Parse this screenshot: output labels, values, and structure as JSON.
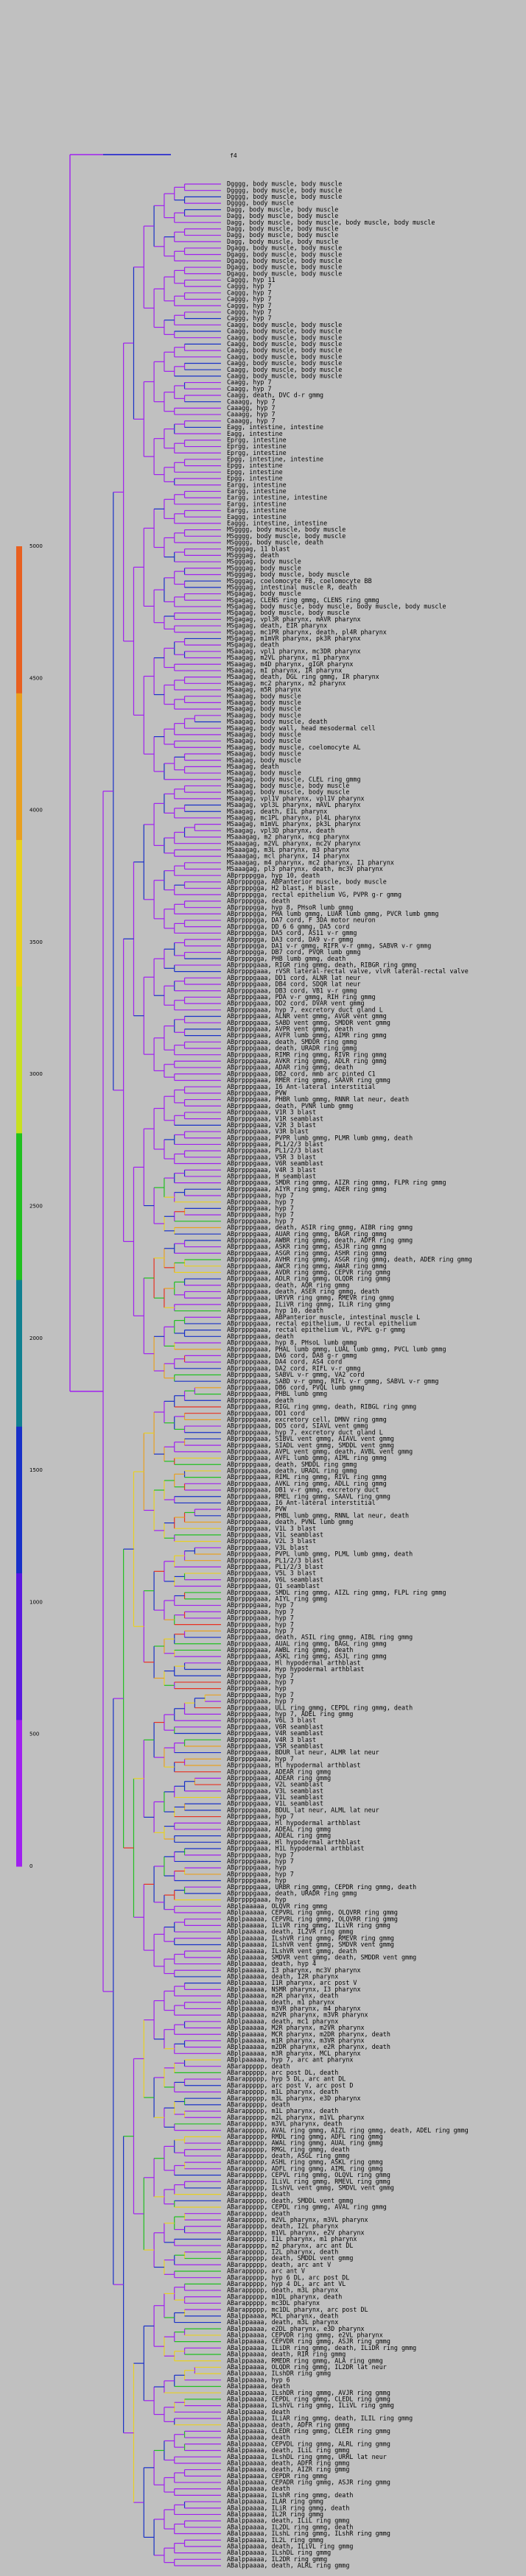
{
  "colors": {
    "background": "#c0c0c0",
    "branch": "#a020f0",
    "scale": [
      "#a020f0",
      "#5a18e0",
      "#1830c8",
      "#108090",
      "#20c020",
      "#c8e020",
      "#e8d020",
      "#e8a020",
      "#e86020"
    ]
  },
  "legend": {
    "ticks": [
      "0",
      "500",
      "1000",
      "1500",
      "2000",
      "2500",
      "3000",
      "3500",
      "4000",
      "4500",
      "5000"
    ]
  },
  "root_label": "f4",
  "leaves": [
    "Dgggg, body muscle, body muscle",
    "Dgggg, body muscle, body muscle",
    "Dgggg, body muscle, body muscle",
    "Dgggg, body muscle",
    "Dagg, body muscle, body muscle",
    "Dagg, body muscle, body muscle",
    "Dagg, body muscle, body muscle, body muscle, body muscle",
    "Dagg, body muscle, body muscle",
    "Dagg, body muscle, body muscle",
    "Dagg, body muscle, body muscle",
    "Dgagg, body muscle, body muscle",
    "Dgagg, body muscle, body muscle",
    "Dgagg, body muscle, body muscle",
    "Dgagg, body muscle, body muscle",
    "Dgagg, body muscle, body muscle",
    "Caggg, hyp 11",
    "Caggg, hyp 7",
    "Caggg, hyp 7",
    "Caggg, hyp 7",
    "Caggg, hyp 7",
    "Caggg, hyp 7",
    "Caggg, hyp 7",
    "Caagg, body muscle, body muscle",
    "Caagg, body muscle, body muscle",
    "Caagg, body muscle, body muscle",
    "Caagg, body muscle, body muscle",
    "Caagg, body muscle, body muscle",
    "Caagg, body muscle, body muscle",
    "Caagg, body muscle, body muscle",
    "Caagg, body muscle, body muscle",
    "Caagg, body muscle, body muscle",
    "Caagg, hyp 7",
    "Caagg, hyp 7",
    "Caagg, death, DVC d-r gmmg",
    "Caaagg, hyp 7",
    "Caaagg, hyp 7",
    "Caaagg, hyp 7",
    "Caaagg, hyp 7",
    "Eagg, intestine, intestine",
    "Eagg, intestine",
    "Eprgg, intestine",
    "Eprgg, intestine",
    "Eprgg, intestine",
    "Epgg, intestine, intestine",
    "Epgg, intestine",
    "Epgg, intestine",
    "Epgg, intestine",
    "Eargg, intestine",
    "Eargg, intestine",
    "Eargg, intestine, intestine",
    "Eargg, intestine",
    "Eargg, intestine",
    "Eaggg, intestine",
    "Eaggg, intestine, intestine",
    "MSgggg, body muscle, body muscle",
    "MSgggg, body muscle, body muscle",
    "MSgggg, body muscle, death",
    "MSgggag, 11 blast",
    "MSgggag, death",
    "MSgggag, body muscle",
    "MSgggag, body muscle",
    "MSgggag, body muscle, body muscle",
    "MSgggag, coelomocyte FB, coelomocyte BB",
    "MSgggag, intestinal muscle R, death",
    "MSgagag, body muscle",
    "MSgagag, CLENS ring gmmg, CLENS ring gmmg",
    "MSgagag, body muscle, body muscle, body muscle, body muscle",
    "MSgagag, body muscle, body muscle",
    "MSgagag, vpl3R pharynx, mAVR pharynx",
    "MSgagag, death, EIR pharynx",
    "MSgagag, mc1PR pharynx, death, pl4R pharynx",
    "MSgagag, m1mVR pharynx, pk3R pharynx",
    "MSgagag, death",
    "MSaagag, vpl1 pharynx, mc3DR pharynx",
    "MSaagag, m2VL pharynx, m1 pharynx",
    "MSaagag, m4D pharynx, gIGR pharynx",
    "MSaagag, mI pharynx, IR pharynx",
    "MSaagag, death, DGL ring gmmg, IR pharynx",
    "MSaagag, mc2 pharynx, m2 pharynx",
    "MSaagag, m5R pharynx",
    "MSaagag, body muscle",
    "MSaagag, body muscle",
    "MSaagag, body muscle",
    "MSaagag, body muscle",
    "MSaagag, body muscle, death",
    "MSaagag, body wall, head mesodermal cell",
    "MSaagag, body muscle",
    "MSaagag, body muscle",
    "MSaagag, body muscle, coelomocyte AL",
    "MSaagag, body muscle",
    "MSaagag, body muscle",
    "MSaagag, death",
    "MSaagag, body muscle",
    "MSaagag, body muscle, CLEL ring gmmg",
    "MSaagag, body muscle, body muscle",
    "MSaagag, body muscle, body muscle",
    "MSaagag, vpl1V pharynx, vpl1V pharynx",
    "MSaagag, vpl3L pharynx, mAVL pharynx",
    "MSaagag, death, EIL pharynx",
    "MSaagag, mc1PL pharynx, pl4L pharynx",
    "MSaagag, m1mVL pharynx, pk3L pharynx",
    "MSaagag, vpl3D pharynx, death",
    "MSaaagag, m2 pharynx, mcg pharynx",
    "MSaaagag, m2VL pharynx, mc2V pharynx",
    "MSaaagag, m3L pharynx, m3 pharynx",
    "MSaaagag, mcl pharynx, I4 pharynx",
    "MSaaagag, m4 pharynx, mc2 pharynx, I1 pharynx",
    "MSaaagag, pl3 pharynx, death, mc3V pharynx",
    "ABprpppgga, hyp 10, death",
    "ABprpppgga, ABPanterior muscle, body muscle",
    "ABprpppgga, H2 blast, H blast",
    "ABprpppgga, rectal epithelium VG, PVPR g-r gmmg",
    "ABprpppgga, death",
    "ABprpppgga, hyp 8, PHsoR lumb gmmg",
    "ABprpppgga, PHA lumb gmmg, LUAR lumb gmmg, PVCR lumb gmmg",
    "ABprpppgga, DA7 cord, F 3DA motor neuron",
    "ABprpppgga, DD 6 6 gmmg, DA5 cord",
    "ABprpppgga, DA5 cord, AS11 v-r gmmg",
    "ABprpppgga, DA3 cord, DA9 v-r gmmg",
    "ABprpppgga, DA1 v-r gmmg, RIFR v-r gmmg, SABVR v-r gmmg",
    "ABprpppgga, DB7 cord, PVQR lumb gmmg",
    "ABprpppgga, PHB lumb gmmg, death",
    "ABprpppgaaa, RIGR ring gmmg, death, RIBGR ring gmmg",
    "ABprpppgaaa, rVSR lateral-rectal valve, vlvR lateral-rectal valve",
    "ABprpppgaaa, DD1 cord, ALNR lat neur",
    "ABprpppgaaa, DB4 cord, SDQR lat neur",
    "ABprpppgaaa, DB3 cord, VB1 v-r gmmg",
    "ABprpppgaaa, PDA v-r gmmg, RIH ring gmmg",
    "ABprpppgaaa, DD2 cord, DVAR vent gmmg",
    "ABprpppgaaa, hyp 7, excretory duct gland L",
    "ABprpppgaaa, ALNR vent gmmg, AVGR vent gmmg",
    "ABprpppgaaa, SABD vent gmmg, SMDDR vent gmmg",
    "ABprpppgaaa, AVPR vent gmmg, death",
    "ABprpppgaaa, AVFR lumb gmmg, AIMR ring gmmg",
    "ABprpppgaaa, death, SMDDR ring gmmg",
    "ABprpppgaaa, death, URADR ring gmmg",
    "ABprpppgaaa, RIMR ring gmmg, RIVR ring gmmg",
    "ABprpppgaaa, AVKR ring gmmg, ADLR ring gmmg",
    "ABprpppgaaa, ADAR ring gmmg, death",
    "ABprpppgaaa, DB2 cord, mmb arc pinted C1",
    "ABprpppgaaa, RMER ring gmmg, SAAVR ring gmmg",
    "ABprpppgaaa, I6 Ant-lateral interstitial",
    "ABprpppgaaa, PVW",
    "ABprpppgaaa, PHBR lumb gmmg, RNNR lat neur, death",
    "ABprpppgaaa, death, PVNR lumb gmmg",
    "ABprpppgaaa, V1R 3 blast",
    "ABprpppgaaa, V1R seamblast",
    "ABprpppgaaa, V2R 3 blast",
    "ABprpppgaaa, V3R blast",
    "ABprpppgaaa, PVPR lumb gmmg, PLMR lumb gmmg, death",
    "ABprpppgaaa, PL1/2/3 blast",
    "ABprpppgaaa, PL1/2/3 blast",
    "ABprpppgaaa, V5R 3 blast",
    "ABprpppgaaa, V6R seamblast",
    "ABprpppgaaa, V4R 3 blast",
    "ABprpppgaaa, H seamblast",
    "ABprpppgaaa, SMDR ring gmmg, AIZR ring gmmg, FLPR ring gmmg",
    "ABprpppgaaa, AIYR ring gmmg, ADER ring gmmg",
    "ABprpppgaaa, hyp 7",
    "ABprpppgaaa, hyp 7",
    "ABprpppgaaa, hyp 7",
    "ABprpppgaaa, hyp 7",
    "ABprpppgaaa, hyp 7",
    "ABprpppgaaa, death, ASIR ring gmmg, AIBR ring gmmg",
    "ABprpppgaaa, AUAR ring gmmg, BAGR ring gmmg",
    "ABprpppgaaa, AWBR ring gmmg, death, ADFR ring gmmg",
    "ABprpppgaaa, ASKR ring gmmg, ASJR ring gmmg",
    "ABprpppgaaa, ASGR ring gmmg, ASHR ring gmmg",
    "ABprpppgaaa, AVHR ring gmmg, ASGR ring gmmg, death, ADER ring gmmg",
    "ABprpppgaaa, AWCR ring gmmg, AWAR ring gmmg",
    "ABprpppgaaa, AVDR ring gmmg, CEPVR ring gmmg",
    "ABprpppgaaa, ADLR ring gmmg, OLQDR ring gmmg",
    "ABprpppgaaa, death, AQR ring gmmg",
    "ABprpppgaaa, death, ASER ring gmmg, death",
    "ABprpppgaaa, URYVR ring gmmg, RMEVR ring gmmg",
    "ABprpppgaaa, ILiVR ring gmmg, ILiR ring gmmg",
    "ABprpppgaaa, hyp 10, death",
    "ABprpppgaaa, ABPanterior muscle, intestinal muscle L",
    "ABprpppgaaa, rectal epithelium, U rectal epithelium",
    "ABprpppgaaa, rectal epithelium VL, PVPL g-r gmmg",
    "ABprpppgaaa, death",
    "ABprpppgaaa, hyp 8, PHsoL lumb gmmg",
    "ABprpppgaaa, PHAL lumb gmmg, LUAL lumb gmmg, PVCL lumb gmmg",
    "ABprpppgaaa, DA6 cord, DA8 g-r gmmg",
    "ABprpppgaaa, DA4 cord, AS4 cord",
    "ABprpppgaaa, DA2 cord, RIFL v-r gmmg",
    "ABprpppgaaa, SABVL v-r gmmg, VA2 cord",
    "ABprpppgaaa, SABD v-r gmmg, RIFL v-r gmmg, SABVL v-r gmmg",
    "ABprpppgaaa, DB6 cord, PVQL lumb gmmg",
    "ABprpppgaaa, PHBL lumb gmmg",
    "ABprpppgaaa, death",
    "ABprpppgaaa, RIGL ring gmmg, death, RIBGL ring gmmg",
    "ABprpppgaaa, DD1 cord",
    "ABprpppgaaa, excretory cell, DMNV ring gmmg",
    "ABprpppgaaa, DD5 cord, SIAVL vent gmmg",
    "ABprpppgaaa, hyp 7, excretory duct gland L",
    "ABprpppgaaa, SIBVL vent gmmg, AIAVL vent gmmg",
    "ABprpppgaaa, SIADL vent gmmg, SMDDL vent gmmg",
    "ABprpppgaaa, AVPL vent gmmg, death, AVBL vent gmmg",
    "ABprpppgaaa, AVFL lumb gmmg, AIML ring gmmg",
    "ABprpppgaaa, death, SMDDL ring gmmg",
    "ABprpppgaaa, death, URADL ring gmmg",
    "ABprpppgaaa, RIML ring gmmg, RIVL ring gmmg",
    "ABprpppgaaa, AVKL ring gmmg, ADLL ring gmmg",
    "ABprpppgaaa, DB1 v-r gmmg, excretory duct",
    "ABprpppgaaa, RMEL ring gmmg, SAAVL ring gmmg",
    "ABprpppgaaa, I6 Ant-lateral interstitial",
    "ABprpppgaaa, PVW",
    "ABprpppgaaa, PHBL lumb gmmg, RNNL lat neur, death",
    "ABprpppgaaa, death, PVNL lumb gmmg",
    "ABprpppgaaa, V1L 3 blast",
    "ABprpppgaaa, V1L seamblast",
    "ABprpppgaaa, V2L 3 blast",
    "ABprpppgaaa, V3L blast",
    "ABprpppgaaa, PVPL lumb gmmg, PLML lumb gmmg, death",
    "ABprpppgaaa, PL1/2/3 blast",
    "ABprpppgaaa, PL1/2/3 blast",
    "ABprpppgaaa, V5L 3 blast",
    "ABprpppgaaa, V6L seamblast",
    "ABprpppgaaa, Q1 seamblast",
    "ABprpppgaaa, SMDL ring gmmg, AIZL ring gmmg, FLPL ring gmmg",
    "ABprpppgaaa, AIYL ring gmmg",
    "ABprpppgaaa, hyp 7",
    "ABprpppgaaa, hyp 7",
    "ABprpppgaaa, hyp 7",
    "ABprpppgaaa, hyp 7",
    "ABprpppgaaa, hyp 7",
    "ABprpppgaaa, death, ASIL ring gmmg, AIBL ring gmmg",
    "ABprpppgaaa, AUAL ring gmmg, BAGL ring gmmg",
    "ABprpppgaaa, AWBL ring gmmg, death",
    "ABprpppgaaa, ASKL ring gmmg, ASJL ring gmmg",
    "ABprpppgaaa, Hl hypodermal arthblast",
    "ABprpppgaaa, Hyp hypodermal arthblast",
    "ABprpppgaaa, hyp 7",
    "ABprpppgaaa, hyp 7",
    "ABprpppgaaa, hyp",
    "ABprpppgaaa, hyp 7",
    "ABprpppgaaa, hyp 7",
    "ABprpppgaaa, ULL ring gmmg, CEPDL ring gmmg, death",
    "ABprpppgaaa, hyp 7, ADEL ring gmmg",
    "ABprpppgaaa, V6L 3 blast",
    "ABprpppgaaa, V6R seamblast",
    "ABprpppgaaa, V4R seamblast",
    "ABprpppgaaa, V4R 3 blast",
    "ABprpppgaaa, V5R seamblast",
    "ABprpppgaaa, BDUR lat neur, ALMR lat neur",
    "ABprpppgaaa, hyp 7",
    "ABprpppgaaa, Hl hypodermal arthblast",
    "ABprpppgaaa, ADEAR ring gmmg",
    "ABprpppgaaa, ADEAR ring gmmg",
    "ABprpppgaaa, V2L seamblast",
    "ABprpppgaaa, V3L seamblast",
    "ABprpppgaaa, V1L seamblast",
    "ABprpppgaaa, V1L seamblast",
    "ABprpppgaaa, BDUL lat neur, ALML lat neur",
    "ABprpppgaaa, hyp 7",
    "ABprpppgaaa, Hl hypodermal arthblast",
    "ABprpppgaaa, ADEAL ring gmmg",
    "ABprpppgaaa, ADEAL ring gmmg",
    "ABprpppgaaa, Hl hypodermal arthblast",
    "ABprpppgaaa, H1L hypodermal arthblast",
    "ABprpppgaaa, hyp 7",
    "ABprpppgaaa, hyp 7",
    "ABprpppgaaa, hyp",
    "ABprpppgaaa, hyp 7",
    "ABprpppgaaa, hyp",
    "ABprpppgaaa, URBR ring gmmg, CEPDR ring gmmg, death",
    "ABprpppgaaa, death, URADR ring gmmg",
    "ABprpppgaaa, hyp",
    "ABplpaaaaa, OLQVR ring gmmg",
    "ABplpaaaaa, CEPVRL ring gmmg, OLQVRR ring gmmg",
    "ABplpaaaaa, CEPVRL ring gmmg, OLQVRR ring gmmg",
    "ABplpaaaaa, ILiVR ring gmmg, ILiVR ring gmmg",
    "ABplpaaaaa, death, IL2VR ring gmmg",
    "ABplpaaaaa, ILshVR ring gmmg, RMEVR ring gmmg",
    "ABplpaaaaa, ILshVR vent gmmg, SMDVR vent gmmg",
    "ABplpaaaaa, ILshVR vent gmmg, death",
    "ABplpaaaaa, SMDVR vent gmmg, death, SMDDR vent gmmg",
    "ABplpaaaaa, death, hyp 4",
    "ABplpaaaaa, I3 pharynx, mc3V pharynx",
    "ABplpaaaaa, death, I2R pharynx",
    "ABplpaaaaa, I1R pharynx, arc post V",
    "ABplpaaaaa, NSMR pharynx, I3 pharynx",
    "ABplpaaaaa, m2R pharynx, death",
    "ABplpaaaaa, death, m1 pharynx",
    "ABplpaaaaa, m3VR pharynx, m4 pharynx",
    "ABplpaaaaa, m2VR pharynx, m3VR pharynx",
    "ABplpaaaaa, death, mc1 pharynx",
    "ABplpaaaaa, M2R pharynx, m2VR pharynx",
    "ABplpaaaaa, MCR pharynx, m2DR pharynx, death",
    "ABplpaaaaa, m1R pharynx, m3VR pharynx",
    "ABplpaaaaa, m2DR pharynx, e2R pharynx, death",
    "ABplpaaaaa, m3R pharynx, MCL pharynx",
    "ABplpaaaaa, hyp 7, arc ant pharynx",
    "ABarappppp, death",
    "ABarappppp, arc post DL, death",
    "ABarappppp, hyp 5 DL, arc ant DL",
    "ABarappppp, arc post V, arc post D",
    "ABarappppp, m1L pharynx, death",
    "ABarappppp, m3L pharynx, e3D pharynx",
    "ABarappppp, death",
    "ABarappppp, m1L pharynx, death",
    "ABarappppp, m2L pharynx, m1VL pharynx",
    "ABarappppp, m3VL pharynx, death",
    "ABarappppp, AVAL ring gmmg, AIZL ring gmmg, death, ADEL ring gmmg",
    "ABarappppp, RMDL ring gmmg, ADFL ring gmmg",
    "ABarappppp, AWAL ring gmmg, AUAL ring gmmg",
    "ABarappppp, RMGL ring gmmg, death",
    "ABarappppp, death, ASGL ring gmmg",
    "ABarappppp, ASHL ring gmmg, ASKL ring gmmg",
    "ABarappppp, ADFL ring gmmg, AIML ring gmmg",
    "ABarappppp, CEPVL ring gmmg, OLQVL ring gmmg",
    "ABarappppp, ILiVL ring gmmg, RMEVL ring gmmg",
    "ABarappppp, ILshVL vent gmmg, SMDVL vent gmmg",
    "ABarappppp, death",
    "ABarappppp, death, SMDDL vent gmmg",
    "ABarappppp, CEPDL ring gmmg, AVAL ring gmmg",
    "ABarappppp, death",
    "ABarappppp, m2VL pharynx, m3VL pharynx",
    "ABarappppp, death, I2L pharynx",
    "ABarappppp, m1VL pharynx, e2V pharynx",
    "ABarappppp, I1L pharynx, m1 pharynx",
    "ABarappppp, m2 pharynx, arc ant DL",
    "ABarappppp, I2L pharynx, death",
    "ABarappppp, death, SMDDL vent gmmg",
    "ABarappppp, death, arc ant V",
    "ABarappppp, arc ant V",
    "ABarappppp, hyp 6 DL, arc post DL",
    "ABarappppp, hyp 4 DL, arc ant VL",
    "ABarappppp, death, m3L pharynx",
    "ABarappppp, m1DL pharynx, death",
    "ABarappppp, mc3DL pharynx",
    "ABarappppp, mc1DL pharynx, arc post DL",
    "ABalppaaaa, MCL pharynx, death",
    "ABalppaaaa, death, m3L pharynx",
    "ABalppaaaa, e2DL pharynx, e3D pharynx",
    "ABalppaaaa, CEPVDR ring gmmg, e2VL pharynx",
    "ABalppaaaa, CEPVDR ring gmmg, ASJR ring gmmg",
    "ABalppaaaa, ILiDR ring gmmg, death, ILiDR ring gmmg",
    "ABalppaaaa, death, RIR ring gmmg",
    "ABalppaaaa, RMEDR ring gmmg, ALA ring gmmg",
    "ABalppaaaa, OLQDR ring gmmg, IL2DR lat neur",
    "ABalppaaaa, ILshDR ring gmmg",
    "ABalppaaaa, hyp 6",
    "ABalppaaaa, death",
    "ABalppaaaa, ILshDR ring gmmg, AVJR ring gmmg",
    "ABalppaaaa, CEPDL ring gmmg, CLEDL ring gmmg",
    "ABalppaaaa, ILshVL ring gmmg, ILiVL ring gmmg",
    "ABalppaaaa, death",
    "ABalppaaaa, ILiAR ring gmmg, death, ILIL ring gmmg",
    "ABalppaaaa, death, ADFR ring gmmg",
    "ABalppaaaa, CLEDR ring gmmg, CLEIR ring gmmg",
    "ABalppaaaa, death",
    "ABalppaaaa, CEPVDL ring gmmg, ALRL ring gmmg",
    "ABalppaaaa, death, ILiL ring gmmg",
    "ABalppaaaa, ILshDL ring gmmg, URRL lat neur",
    "ABalppaaaa, death, ADFR ring gmmg",
    "ABalppaaaa, death, AIZR ring gmmg",
    "ABalppaaaa, CEPDR ring gmmg",
    "ABalppaaaa, CEPADR ring gmmg, ASJR ring gmmg",
    "ABalppaaaa, death",
    "ABalppaaaa, ILshR ring gmmg, death",
    "ABalppaaaa, ILAR ring gmmg",
    "ABalppaaaa, ILiR ring gmmg, death",
    "ABalppaaaa, IL2R ring gmmg",
    "ABalppaaaa, death, ILiL ring gmmg",
    "ABalppaaaa, IL2DL ring gmmg, death",
    "ABalppaaaa, ILshL ring gmmg, ILshR ring gmmg",
    "ABalppaaaa, IL2L ring gmmg",
    "ABalppaaaa, death, ILiVL ring gmmg",
    "ABalppaaaa, ILshDL ring gmmg",
    "ABalppaaaa, IL2DR ring gmmg",
    "ABalppaaaa, death, ALRL ring gmmg"
  ]
}
